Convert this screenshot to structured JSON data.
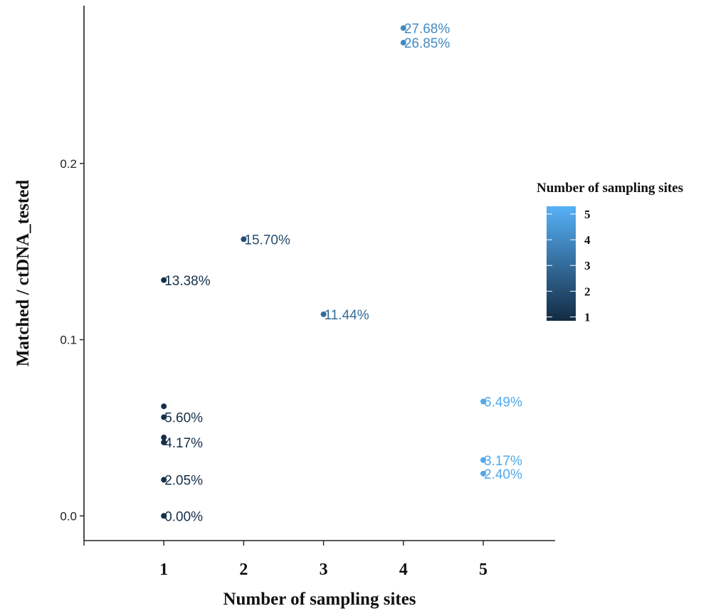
{
  "chart_data": {
    "type": "scatter",
    "xlabel": "Number of sampling sites",
    "ylabel": "Matched / ctDNA_tested",
    "xlim": [
      0.0,
      5.9
    ],
    "ylim": [
      -0.014,
      0.2895
    ],
    "x_ticks": [
      1,
      2,
      3,
      4,
      5
    ],
    "y_ticks": [
      0.0,
      0.1,
      0.2
    ],
    "y_tick_labels": [
      "0.0",
      "0.1",
      "0.2"
    ],
    "grid": false,
    "legend": {
      "title": "Number of sampling sites",
      "placement": "right",
      "type": "colorbar",
      "ticks": [
        1,
        2,
        3,
        4,
        5
      ],
      "range": [
        0.85,
        5.3
      ],
      "color_low": "#132b43",
      "color_high": "#56b1f7"
    },
    "points": [
      {
        "x": 1,
        "y": 0.0,
        "label": "0.00%"
      },
      {
        "x": 1,
        "y": 0.0205,
        "label": "2.05%"
      },
      {
        "x": 1,
        "y": 0.0417,
        "label": "4.17%"
      },
      {
        "x": 1,
        "y": 0.0445,
        "label": ""
      },
      {
        "x": 1,
        "y": 0.056,
        "label": "5.60%"
      },
      {
        "x": 1,
        "y": 0.0622,
        "label": ""
      },
      {
        "x": 1,
        "y": 0.1338,
        "label": "13.38%"
      },
      {
        "x": 2,
        "y": 0.157,
        "label": "15.70%"
      },
      {
        "x": 3,
        "y": 0.1144,
        "label": "11.44%"
      },
      {
        "x": 4,
        "y": 0.2768,
        "label": "27.68%"
      },
      {
        "x": 4,
        "y": 0.2685,
        "label": "26.85%"
      },
      {
        "x": 5,
        "y": 0.0649,
        "label": "6.49%"
      },
      {
        "x": 5,
        "y": 0.0317,
        "label": "3.17%"
      },
      {
        "x": 5,
        "y": 0.024,
        "label": "2.40%"
      }
    ]
  }
}
